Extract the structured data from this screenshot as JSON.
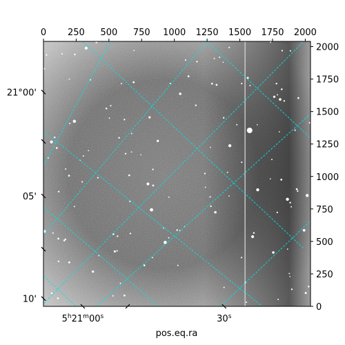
{
  "chart_data": {
    "type": "image",
    "xlabel": "pos.eq.ra",
    "pixel_axis_x": {
      "range": [
        0,
        2040
      ],
      "ticks": [
        0,
        250,
        500,
        750,
        1000,
        1250,
        1500,
        1750,
        2000
      ]
    },
    "pixel_axis_y": {
      "range": [
        0,
        2040
      ],
      "ticks": [
        0,
        250,
        500,
        750,
        1000,
        1250,
        1500,
        1750,
        2000
      ]
    },
    "ra_tick_labels": [
      {
        "text": "5h21m00s",
        "major": "5",
        "h": "h",
        "minutes": "21",
        "m": "m",
        "seconds": "00",
        "s": "s",
        "px": 300
      },
      {
        "text": "30s",
        "seconds": "30",
        "s": "s",
        "px": 1380
      }
    ],
    "dec_tick_labels": [
      {
        "text": "21°00'",
        "py": 1650
      },
      {
        "text": "05'",
        "py": 850
      },
      {
        "text": "10'",
        "py": 60
      }
    ],
    "grid": true,
    "grid_color": "#00e5e5",
    "background_colormap": "grayscale",
    "saturated_column_px": 1540
  }
}
